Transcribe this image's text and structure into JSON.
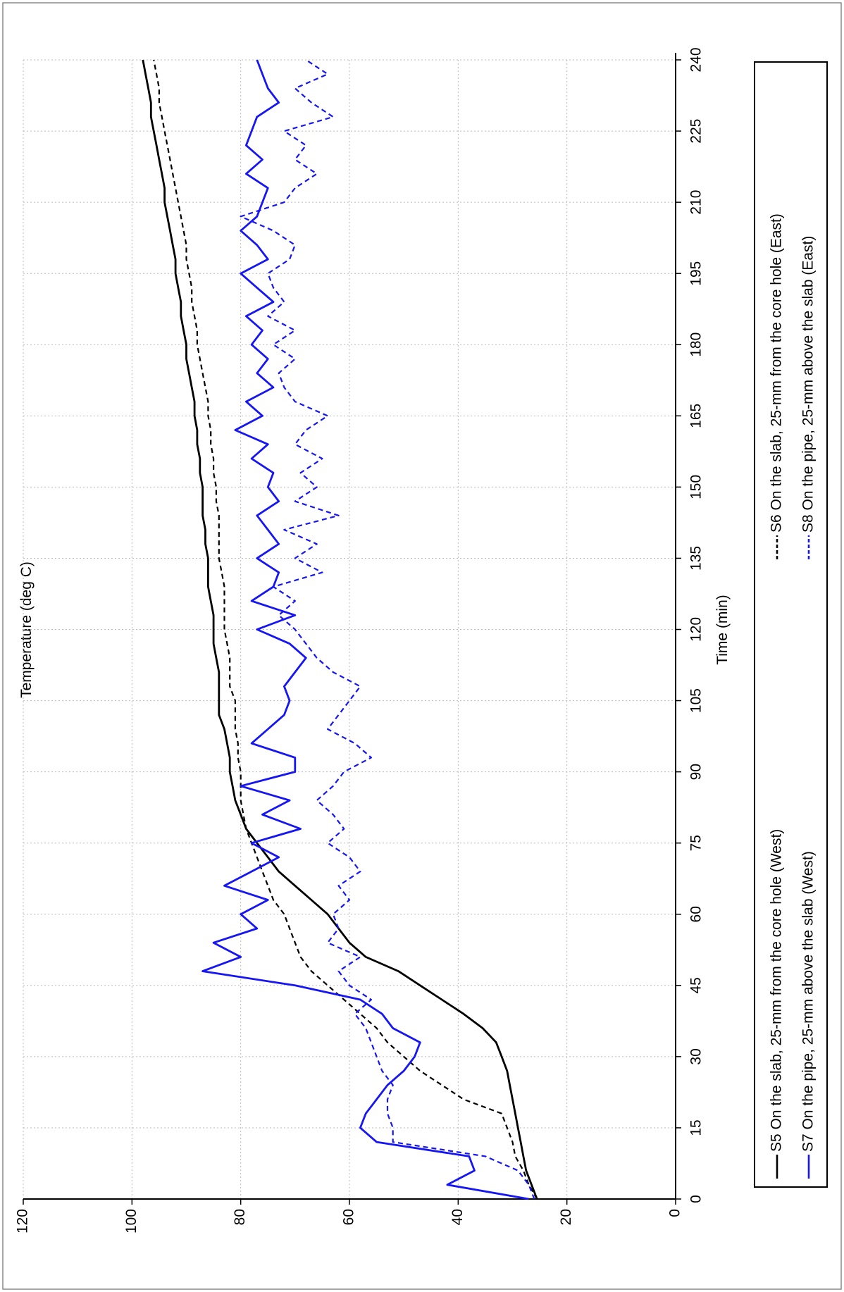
{
  "chart_data": {
    "type": "line",
    "x_label": "Time (min)",
    "y_label": "Temperature (deg C)",
    "xlim": [
      0,
      240
    ],
    "ylim": [
      0,
      120
    ],
    "xticks": [
      0,
      15,
      30,
      45,
      60,
      75,
      90,
      105,
      120,
      135,
      150,
      165,
      180,
      195,
      210,
      225,
      240
    ],
    "yticks": [
      0,
      20,
      40,
      60,
      80,
      100,
      120
    ],
    "grid": true,
    "x": [
      0,
      3,
      6,
      9,
      12,
      15,
      18,
      21,
      24,
      27,
      30,
      33,
      36,
      39,
      42,
      45,
      48,
      51,
      54,
      57,
      60,
      63,
      66,
      69,
      72,
      75,
      78,
      81,
      84,
      87,
      90,
      93,
      96,
      99,
      102,
      105,
      108,
      111,
      114,
      117,
      120,
      123,
      126,
      129,
      132,
      135,
      138,
      141,
      144,
      147,
      150,
      153,
      156,
      159,
      162,
      165,
      168,
      171,
      174,
      177,
      180,
      183,
      186,
      189,
      192,
      195,
      198,
      201,
      204,
      207,
      210,
      213,
      216,
      219,
      222,
      225,
      228,
      231,
      234,
      237,
      240
    ],
    "series": [
      {
        "name": "S5 On the slab, 25-mm from the core hole (West)",
        "color": "#000000",
        "line_style": "solid",
        "values": [
          25.5,
          26.5,
          27.5,
          28,
          28.5,
          29,
          29.5,
          30,
          30.5,
          31,
          32,
          33,
          35.5,
          39,
          43,
          47,
          51,
          57,
          60,
          62,
          64,
          67,
          70,
          73,
          75,
          77,
          79,
          80,
          81,
          81.5,
          82,
          82,
          82.5,
          83,
          84,
          84,
          84,
          84,
          84.5,
          85,
          85,
          85,
          85.5,
          86,
          86,
          86,
          86.5,
          86.5,
          87,
          87,
          87,
          87.5,
          87.5,
          88,
          88,
          88.5,
          88.5,
          89,
          89.5,
          90,
          90,
          90.5,
          91,
          91,
          91.5,
          92,
          92,
          92.5,
          93,
          93.5,
          94,
          94,
          94.5,
          95,
          95.5,
          96,
          96.5,
          96.5,
          97,
          97.5,
          98
        ]
      },
      {
        "name": "S6 On the slab, 25-mm from the core hole (East)",
        "color": "#000000",
        "line_style": "dashed",
        "values": [
          25.5,
          27,
          28,
          29.5,
          30,
          31,
          32,
          39,
          43,
          47,
          50,
          53,
          55,
          58,
          61,
          64,
          67,
          69,
          70,
          71,
          72,
          74,
          75,
          76,
          77,
          78,
          79,
          79.5,
          80,
          80,
          80,
          80.5,
          80.5,
          81,
          81,
          81,
          82,
          82,
          82,
          82.5,
          83,
          83,
          83,
          83,
          83.5,
          84,
          84,
          84,
          84,
          84.5,
          84.5,
          85,
          85,
          85.5,
          85.5,
          86,
          86,
          86.5,
          87,
          87.5,
          88,
          88,
          88.5,
          89,
          89,
          89.5,
          90,
          90,
          90.5,
          91,
          91.5,
          92,
          92.5,
          93,
          93.5,
          94,
          94.5,
          95,
          95,
          95.5,
          96
        ]
      },
      {
        "name": "S7 On the pipe,  25-mm above the slab (West)",
        "color": "#1515f5",
        "line_style": "solid",
        "values": [
          27,
          42,
          37,
          38,
          55,
          58,
          57,
          55,
          53,
          50,
          48,
          47,
          52,
          54,
          58,
          70,
          87,
          80,
          85,
          77,
          80,
          75,
          83,
          78,
          73,
          78,
          69,
          76,
          71,
          80,
          70,
          70,
          78,
          75,
          72,
          71,
          72,
          70,
          68,
          71,
          77,
          70,
          78,
          74,
          73,
          77,
          73,
          75,
          77,
          73,
          75,
          74,
          78,
          75,
          81,
          76,
          79,
          74,
          77,
          75,
          78,
          76,
          79,
          74,
          77,
          80,
          75,
          77,
          80,
          77,
          76,
          75,
          79,
          76,
          79,
          78,
          77,
          73,
          75,
          76,
          77
        ]
      },
      {
        "name": "S8 On the pipe,  25-mm above the slab (East)",
        "color": "#1515f5",
        "line_style": "dashed",
        "values": [
          26,
          27,
          29,
          35,
          52,
          52,
          53,
          53,
          52,
          54,
          55,
          56,
          57,
          59,
          56,
          60,
          62,
          58,
          64,
          62,
          63,
          60,
          62,
          58,
          60,
          64,
          61,
          63,
          66,
          63,
          61,
          56,
          59,
          64,
          62,
          60,
          58,
          63,
          66,
          68,
          70,
          73,
          70,
          74,
          65,
          70,
          66,
          72,
          62,
          70,
          66,
          69,
          65,
          70,
          68,
          64,
          70,
          72,
          73,
          70,
          74,
          70,
          75,
          72,
          74,
          75,
          71,
          70,
          74,
          80,
          72,
          70,
          66,
          70,
          68,
          72,
          63,
          67,
          70,
          64,
          68
        ]
      }
    ]
  }
}
